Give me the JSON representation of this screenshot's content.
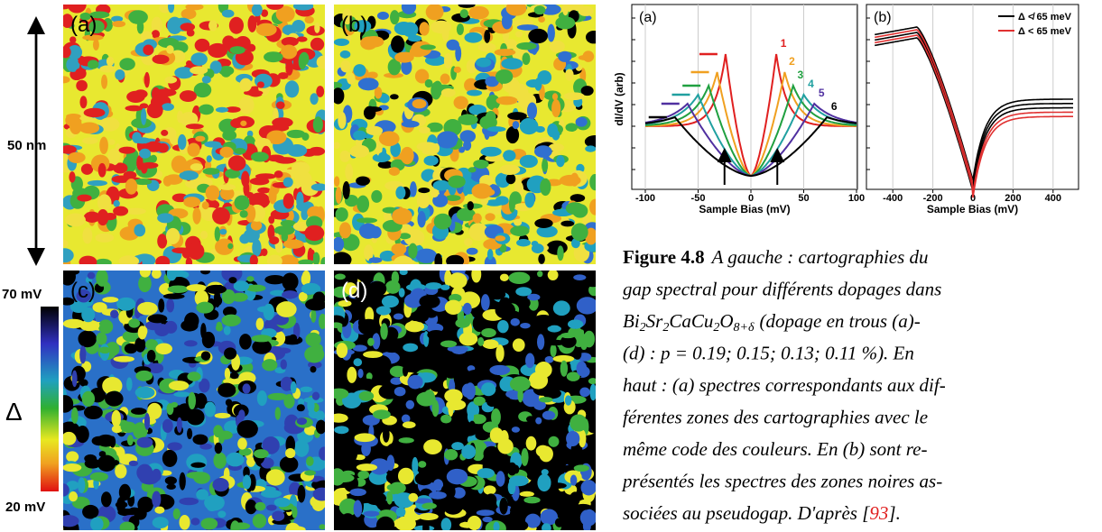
{
  "maps": {
    "scale_label": "50 nm",
    "panels": [
      "(a)",
      "(b)",
      "(c)",
      "(d)"
    ],
    "colorbar": {
      "top": "70 mV",
      "symbol": "Δ",
      "bottom": "20 mV"
    }
  },
  "spectra": {
    "a": {
      "panel": "(a)",
      "ylabel": "dI/dV (arb)",
      "xlabel": "Sample Bias (mV)",
      "xticks": [
        -100,
        -50,
        0,
        50,
        100
      ],
      "curve_labels": [
        "1",
        "2",
        "3",
        "4",
        "5",
        "6"
      ]
    },
    "b": {
      "panel": "(b)",
      "xlabel": "Sample Bias (mV)",
      "xticks": [
        -400,
        -200,
        0,
        200,
        400
      ],
      "legend": [
        "Δ ≮ 65 meV",
        "Δ < 65 meV"
      ]
    }
  },
  "caption": {
    "label": "Figure 4.8",
    "first": "A gauche : cartographies du",
    "second": "gap spectral pour différents dopages dans",
    "formula": [
      "Bi",
      "2",
      "Sr",
      "2",
      "CaCu",
      "2",
      "O",
      "8+δ"
    ],
    "formula_rest": "(dopage en trous (a)-",
    "lines": [
      "(d) : p = 0.19; 0.15; 0.13; 0.11 %). En",
      "haut : (a) spectres correspondants aux dif-",
      "férentes zones des cartographies avec le",
      "même code des couleurs. En (b) sont re-",
      "présentés les spectres des zones noires as-"
    ],
    "last": "sociées au pseudogap. D'après [",
    "ref": "93",
    "end": "]."
  }
}
